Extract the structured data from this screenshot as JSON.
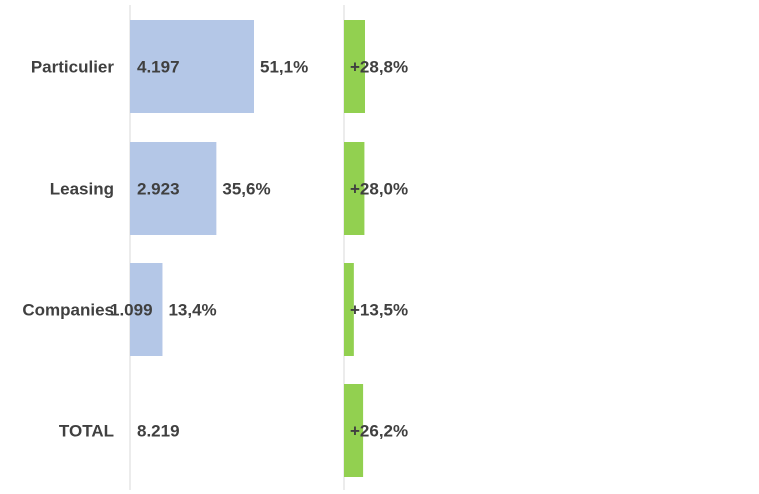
{
  "chart_data": {
    "type": "bar",
    "orientation": "horizontal",
    "categories": [
      "Particulier",
      "Leasing",
      "Companies",
      "TOTAL"
    ],
    "series": [
      {
        "values": [
          4197,
          2923,
          1099,
          8219
        ],
        "value_labels": [
          "4.197",
          "2.923",
          "1.099",
          "8.219"
        ],
        "share_labels": [
          "51,1%",
          "35,6%",
          "13,4%",
          ""
        ],
        "color": "#b4c7e7"
      },
      {
        "values": [
          28.8,
          28.0,
          13.5,
          26.2
        ],
        "value_labels": [
          "+28,8%",
          "+28,0%",
          "+13,5%",
          "+26,2%"
        ],
        "color": "#92d050"
      }
    ],
    "bar_shown": [
      true,
      true,
      true,
      false
    ],
    "grid": false,
    "legend": "none",
    "text_color": "#404040",
    "axis_color": "#d9d9d9"
  }
}
